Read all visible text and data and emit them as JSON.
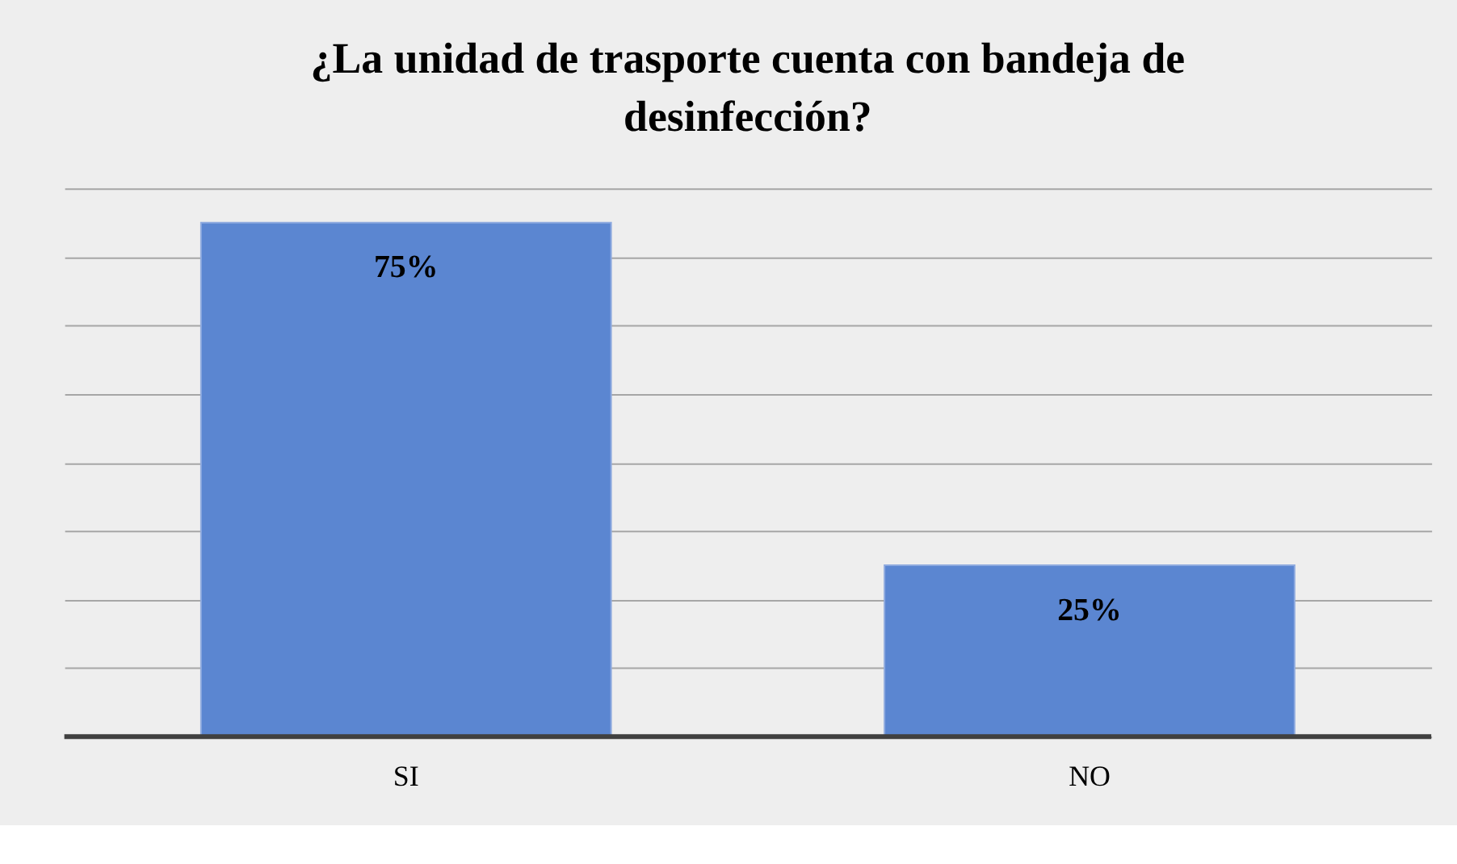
{
  "chart_data": {
    "type": "bar",
    "title": "¿La unidad de trasporte cuenta con bandeja de desinfección?",
    "categories": [
      "SI",
      "NO"
    ],
    "values": [
      75,
      25
    ],
    "color": "#5b86d1",
    "value_labels": [
      "75%",
      "25%"
    ],
    "grid": "y",
    "tick_labels": "x"
  }
}
